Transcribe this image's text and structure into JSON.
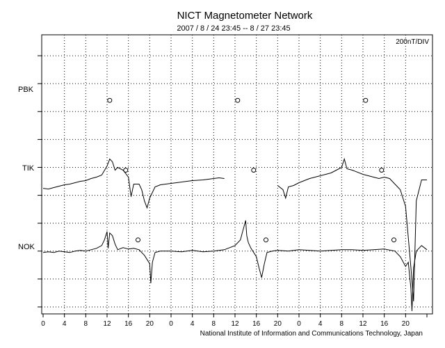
{
  "chart_data": {
    "type": "line",
    "title": "NICT Magnetometer Network",
    "subtitle": "2007 / 8 / 24   23:45 --  8 / 27   23:45",
    "scale_label": "200nT/DIV",
    "credit": "National Institute of Information and Communications Technology, Japan",
    "x_tick_labels": [
      "0",
      "4",
      "8",
      "12",
      "16",
      "20",
      "0",
      "4",
      "8",
      "12",
      "16",
      "20",
      "0",
      "4",
      "8",
      "12",
      "16",
      "20"
    ],
    "x_hours_total": 72,
    "grid": true,
    "stations": [
      "PBK",
      "TIK",
      "NOK"
    ],
    "y_axis_units": "nT",
    "y_range_nT": [
      -1450,
      550
    ],
    "series": [
      {
        "name": "PBK",
        "baseline_nT": 0,
        "local_midnight_marks_hours": [
          12.5,
          36.5,
          60.5
        ],
        "x_hours": [],
        "values_nT": []
      },
      {
        "name": "TIK",
        "baseline_nT": -500,
        "local_midnight_marks_hours": [
          15.5,
          39.5,
          63.5
        ],
        "segments": [
          {
            "x_hours": [
              0,
              1,
              2,
              3,
              4,
              5,
              6,
              7,
              8,
              9,
              10,
              11,
              12,
              12.5,
              13,
              13.5,
              14,
              15,
              16,
              16.5,
              17,
              18,
              18.5,
              19,
              19.5,
              20,
              21,
              22,
              23,
              24,
              26,
              28,
              30,
              32,
              33,
              34
            ],
            "values_nT": [
              -550,
              -555,
              -545,
              -535,
              -525,
              -520,
              -510,
              -500,
              -495,
              -480,
              -470,
              -455,
              -390,
              -340,
              -360,
              -420,
              -400,
              -420,
              -470,
              -610,
              -520,
              -520,
              -560,
              -640,
              -690,
              -620,
              -540,
              -525,
              -520,
              -515,
              -505,
              -495,
              -490,
              -480,
              -475,
              -480
            ]
          },
          {
            "x_hours": [
              44,
              45,
              45.5,
              46,
              47,
              48,
              50,
              52,
              54,
              55,
              56,
              56.5,
              57,
              58,
              60,
              62,
              63,
              64,
              65,
              66,
              67,
              68,
              69,
              69.5,
              70,
              71,
              72
            ],
            "values_nT": [
              -530,
              -560,
              -620,
              -540,
              -530,
              -510,
              -480,
              -460,
              -440,
              -420,
              -400,
              -340,
              -410,
              -420,
              -450,
              -470,
              -480,
              -470,
              -480,
              -520,
              -560,
              -680,
              -1120,
              -1360,
              -640,
              -490,
              -490
            ]
          }
        ]
      },
      {
        "name": "NOK",
        "baseline_nT": -1000,
        "local_midnight_marks_hours": [
          17.8,
          41.8,
          65.8
        ],
        "x_hours": [
          0,
          1,
          2,
          3,
          4,
          5,
          6,
          7,
          8,
          9,
          10,
          11,
          11.5,
          12,
          12.2,
          12.5,
          13,
          13.5,
          14,
          15,
          16,
          17,
          18,
          19,
          20,
          20.2,
          20.5,
          21,
          22,
          24,
          26,
          28,
          30,
          32,
          34,
          36,
          37,
          38,
          38.2,
          38.5,
          39,
          40,
          40.5,
          41,
          41.5,
          42,
          43,
          44,
          46,
          48,
          50,
          52,
          54,
          56,
          58,
          60,
          62,
          64,
          66,
          67,
          68,
          68.5,
          69,
          69.2,
          69.5,
          70,
          71,
          72
        ],
        "values_nT": [
          -1010,
          -1005,
          -1010,
          -1000,
          -1005,
          -1010,
          -1000,
          -995,
          -1000,
          -990,
          -980,
          -960,
          -920,
          -860,
          -980,
          -870,
          -890,
          -950,
          -990,
          -975,
          -985,
          -980,
          -990,
          -1030,
          -1090,
          -1230,
          -1080,
          -1010,
          -1000,
          -1000,
          -1005,
          -995,
          -1005,
          -1000,
          -990,
          -960,
          -920,
          -780,
          -890,
          -940,
          -980,
          -1040,
          -1120,
          -1190,
          -1090,
          -1010,
          -1000,
          -995,
          -1000,
          -990,
          -995,
          -1000,
          -995,
          -990,
          -990,
          -995,
          -990,
          -985,
          -1000,
          -1040,
          -1110,
          -1080,
          -1270,
          -1430,
          -1120,
          -1000,
          -960,
          -990
        ]
      }
    ]
  }
}
